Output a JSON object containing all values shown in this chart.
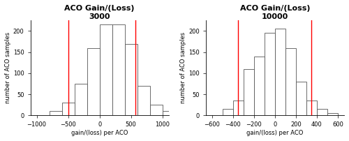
{
  "left": {
    "title": "ACO Gain/(Loss)",
    "subtitle": "3000",
    "xlabel": "gain/(loss) per ACO",
    "ylabel": "number of ACO samples",
    "xlim": [
      -1100,
      1100
    ],
    "ylim": [
      0,
      225
    ],
    "xticks": [
      -1000,
      -500,
      0,
      500,
      1000
    ],
    "yticks": [
      0,
      50,
      100,
      150,
      200
    ],
    "bin_edges": [
      -1000,
      -800,
      -600,
      -400,
      -200,
      0,
      200,
      400,
      600,
      800,
      1000,
      1200
    ],
    "bin_heights": [
      0,
      10,
      30,
      75,
      160,
      215,
      215,
      170,
      70,
      25,
      10
    ],
    "risk_corridors": [
      -500,
      570
    ],
    "bar_color": "white",
    "bar_edge": "#555555",
    "rc_color": "red"
  },
  "right": {
    "title": "ACO Gain/(Loss)",
    "subtitle": "10000",
    "xlabel": "gain/(loss) per ACO",
    "ylabel": "number of ACO samples",
    "xlim": [
      -660,
      660
    ],
    "ylim": [
      0,
      225
    ],
    "xticks": [
      -600,
      -400,
      -200,
      0,
      200,
      400,
      600
    ],
    "yticks": [
      0,
      50,
      100,
      150,
      200
    ],
    "bin_edges": [
      -600,
      -500,
      -400,
      -300,
      -200,
      -100,
      0,
      100,
      200,
      300,
      400,
      500,
      600
    ],
    "bin_heights": [
      0,
      15,
      35,
      110,
      140,
      195,
      205,
      160,
      80,
      35,
      15,
      5
    ],
    "risk_corridors": [
      -350,
      350
    ],
    "bar_color": "white",
    "bar_edge": "#555555",
    "rc_color": "red"
  },
  "fig_width": 5.0,
  "fig_height": 2.02,
  "dpi": 100,
  "title_fontsize": 8,
  "axis_label_fontsize": 6,
  "tick_fontsize": 6
}
